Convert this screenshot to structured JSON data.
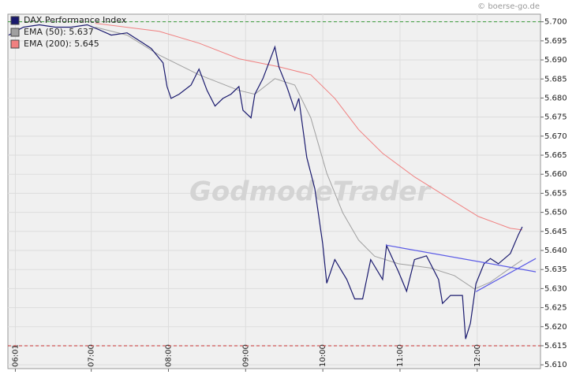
{
  "chart_data": {
    "type": "line",
    "copyright": "© boerse-go.de",
    "watermark": "GodmodeTrader",
    "xlim": [
      5.92,
      12.82
    ],
    "xticks": [
      {
        "value": 6.0167,
        "label": "06:01"
      },
      {
        "value": 7,
        "label": "07:00"
      },
      {
        "value": 8,
        "label": "08:00"
      },
      {
        "value": 9,
        "label": "09:00"
      },
      {
        "value": 10,
        "label": "10:00"
      },
      {
        "value": 11,
        "label": "11:00"
      },
      {
        "value": 12,
        "label": "12:00"
      }
    ],
    "ylim": [
      5609,
      5702
    ],
    "yticks": [
      {
        "value": 5610,
        "label": "5.610"
      },
      {
        "value": 5615,
        "label": "5.615"
      },
      {
        "value": 5620,
        "label": "5.620"
      },
      {
        "value": 5625,
        "label": "5.625"
      },
      {
        "value": 5630,
        "label": "5.630"
      },
      {
        "value": 5635,
        "label": "5.635"
      },
      {
        "value": 5640,
        "label": "5.640"
      },
      {
        "value": 5645,
        "label": "5.645"
      },
      {
        "value": 5650,
        "label": "5.650"
      },
      {
        "value": 5655,
        "label": "5.655"
      },
      {
        "value": 5660,
        "label": "5.660"
      },
      {
        "value": 5665,
        "label": "5.665"
      },
      {
        "value": 5670,
        "label": "5.670"
      },
      {
        "value": 5675,
        "label": "5.675"
      },
      {
        "value": 5680,
        "label": "5.680"
      },
      {
        "value": 5685,
        "label": "5.685"
      },
      {
        "value": 5690,
        "label": "5.690"
      },
      {
        "value": 5695,
        "label": "5.695"
      },
      {
        "value": 5700,
        "label": "5.700"
      }
    ],
    "grid": true,
    "hlines": [
      {
        "value": 5700,
        "color": "#3a9a3a"
      },
      {
        "value": 5615,
        "color": "#c83232"
      }
    ],
    "series": [
      {
        "name": "EMA (200): 5.645",
        "color": "#f08080",
        "x": [
          7.052,
          7.879,
          8.396,
          8.913,
          9.43,
          9.844,
          10.155,
          10.464,
          10.775,
          11.188,
          11.602,
          12.016,
          12.429,
          12.584
        ],
        "values": [
          5699.6,
          5697.5,
          5694.4,
          5690.3,
          5688.2,
          5686.1,
          5679.9,
          5671.7,
          5665.5,
          5659.3,
          5654.1,
          5648.9,
          5645.8,
          5645.4
        ]
      },
      {
        "name": "EMA (50): 5.637",
        "color": "#a0a0a0",
        "x": [
          7.052,
          7.465,
          7.879,
          8.396,
          8.913,
          9.12,
          9.379,
          9.637,
          9.844,
          10.051,
          10.258,
          10.464,
          10.671,
          10.981,
          11.395,
          11.705,
          11.964,
          12.171,
          12.429,
          12.584
        ],
        "values": [
          5698.6,
          5696.5,
          5691.3,
          5686.1,
          5682.0,
          5681.0,
          5685.1,
          5683.4,
          5674.8,
          5660.3,
          5649.9,
          5642.7,
          5638.5,
          5636.5,
          5635.4,
          5633.4,
          5629.9,
          5631.7,
          5635.4,
          5637.5
        ]
      },
      {
        "name": "DAX Performance Index",
        "color": "#1a1a6e",
        "x": [
          5.93,
          6.018,
          6.121,
          6.328,
          6.535,
          6.741,
          6.948,
          7.103,
          7.259,
          7.465,
          7.672,
          7.776,
          7.931,
          7.982,
          8.034,
          8.138,
          8.293,
          8.396,
          8.5,
          8.603,
          8.707,
          8.81,
          8.913,
          8.965,
          9.069,
          9.12,
          9.224,
          9.379,
          9.43,
          9.534,
          9.637,
          9.689,
          9.792,
          9.896,
          9.999,
          10.051,
          10.155,
          10.31,
          10.413,
          10.516,
          10.62,
          10.775,
          10.826,
          10.981,
          11.085,
          11.188,
          11.343,
          11.499,
          11.55,
          11.654,
          11.809,
          11.85,
          11.912,
          11.984,
          12.088,
          12.171,
          12.274,
          12.429,
          12.533,
          12.584
        ],
        "values": [
          5696.5,
          5697.5,
          5698.6,
          5699.2,
          5698.6,
          5698.6,
          5699.2,
          5697.9,
          5696.5,
          5697.1,
          5694.4,
          5693.0,
          5689.2,
          5683.0,
          5679.9,
          5681.0,
          5683.4,
          5687.6,
          5682.0,
          5677.9,
          5679.9,
          5681.0,
          5683.0,
          5676.8,
          5674.8,
          5681.0,
          5685.1,
          5693.4,
          5688.2,
          5683.0,
          5676.8,
          5679.9,
          5664.4,
          5656.2,
          5641.7,
          5631.4,
          5637.6,
          5632.4,
          5627.3,
          5627.3,
          5637.6,
          5632.4,
          5641.3,
          5634.4,
          5629.3,
          5637.6,
          5638.6,
          5632.4,
          5626.1,
          5628.2,
          5628.2,
          5616.8,
          5620.9,
          5631.3,
          5636.5,
          5637.9,
          5636.5,
          5639.2,
          5644.1,
          5646.2
        ]
      }
    ],
    "trendlines": [
      {
        "color": "#5a5ae6",
        "x": [
          10.816,
          12.76
        ],
        "values": [
          5641.4,
          5634.4
        ]
      },
      {
        "color": "#5a5ae6",
        "x": [
          11.984,
          12.76
        ],
        "values": [
          5629.2,
          5637.9
        ]
      }
    ]
  }
}
